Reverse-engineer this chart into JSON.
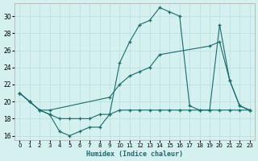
{
  "xlabel": "Humidex (Indice chaleur)",
  "background_color": "#d4f0ef",
  "grid_color": "#b8dede",
  "line_color": "#1a6b6b",
  "xlim": [
    -0.5,
    23.5
  ],
  "ylim": [
    15.5,
    31.5
  ],
  "yticks": [
    16,
    18,
    20,
    22,
    24,
    26,
    28,
    30
  ],
  "xticks": [
    0,
    1,
    2,
    3,
    4,
    5,
    6,
    7,
    8,
    9,
    10,
    11,
    12,
    13,
    14,
    15,
    16,
    17,
    18,
    19,
    20,
    21,
    22,
    23
  ],
  "line1_x": [
    0,
    1,
    2,
    3,
    4,
    5,
    6,
    7,
    8,
    9,
    10,
    11,
    12,
    13,
    14,
    15,
    16,
    17,
    18,
    19,
    20,
    21,
    22,
    23
  ],
  "line1_y": [
    21.0,
    20.0,
    19.0,
    18.5,
    16.5,
    16.0,
    16.5,
    17.0,
    17.0,
    18.5,
    24.5,
    27.0,
    29.0,
    29.5,
    31.0,
    30.5,
    30.0,
    19.5,
    19.0,
    19.0,
    29.0,
    22.5,
    19.5,
    19.0
  ],
  "line2_x": [
    0,
    1,
    2,
    3,
    4,
    5,
    6,
    7,
    8,
    9,
    10,
    11,
    12,
    13,
    14,
    15,
    16,
    17,
    18,
    19,
    20,
    21,
    22,
    23
  ],
  "line2_y": [
    21.0,
    20.0,
    19.0,
    18.5,
    18.0,
    18.0,
    18.0,
    18.0,
    18.5,
    18.5,
    19.0,
    19.0,
    19.0,
    19.0,
    19.0,
    19.0,
    19.0,
    19.0,
    19.0,
    19.0,
    19.0,
    19.0,
    19.0,
    19.0
  ],
  "line3_x": [
    0,
    1,
    2,
    3,
    9,
    10,
    11,
    12,
    13,
    14,
    19,
    20,
    21,
    22,
    23
  ],
  "line3_y": [
    21.0,
    20.0,
    19.0,
    19.0,
    20.5,
    22.0,
    23.0,
    23.5,
    24.0,
    25.5,
    26.5,
    27.0,
    22.5,
    19.5,
    19.0
  ]
}
